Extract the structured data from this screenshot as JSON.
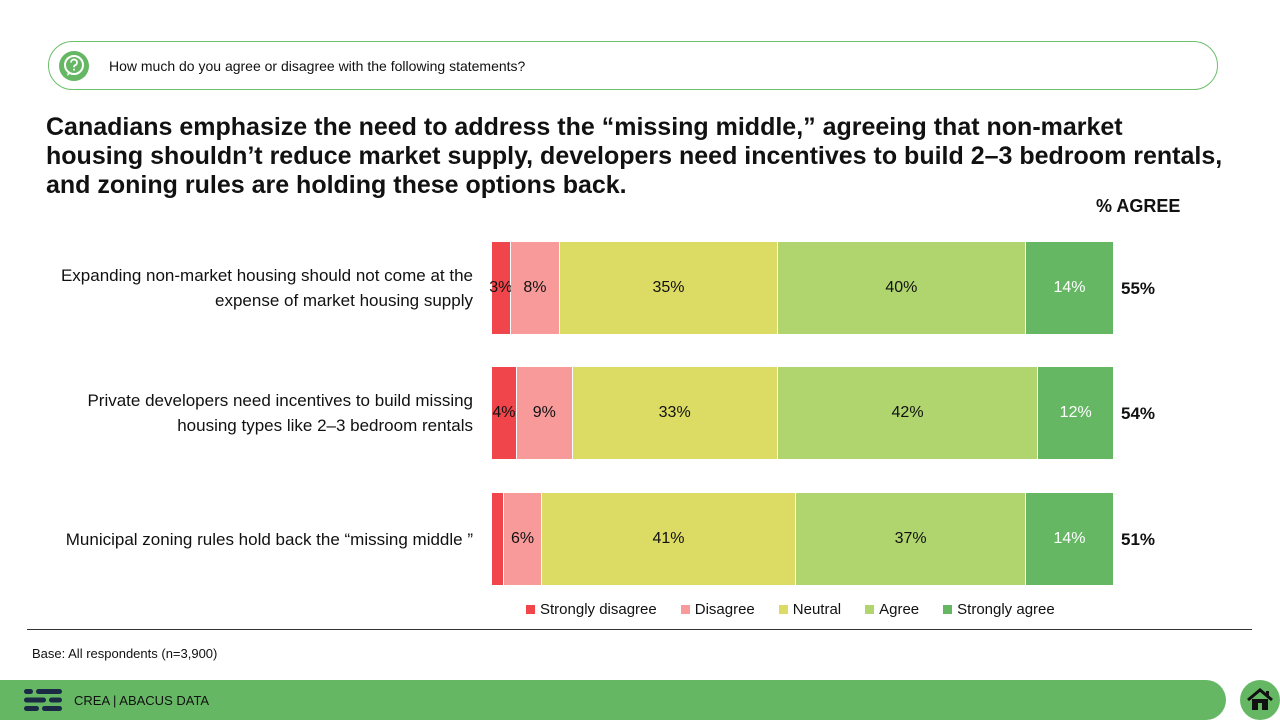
{
  "question": "How much do you agree or disagree with the following statements?",
  "headline": "Canadians emphasize the need to address the “missing middle,” agreeing that non-market housing shouldn’t reduce market supply, developers need incentives to build 2–3 bedroom rentals, and zoning rules are holding these options back.",
  "agree_header": "% AGREE",
  "colors": {
    "strongly_disagree": "#f0454b",
    "disagree": "#f99a9a",
    "neutral": "#dcdc64",
    "agree": "#b0d56e",
    "strongly_agree": "#66b764",
    "accent": "#66b764"
  },
  "chart_data": {
    "type": "bar",
    "orientation": "horizontal",
    "stacked": true,
    "title": "Canadians emphasize the need to address the “missing middle”",
    "categories": [
      "Expanding non-market housing should not come at the expense of market housing supply",
      "Private developers need incentives to build missing housing types like 2–3 bedroom rentals",
      "Municipal zoning rules hold back the “missing middle ”"
    ],
    "category_lines": [
      [
        "Expanding non-market housing should not come at the",
        "expense of market housing supply"
      ],
      [
        "Private developers need incentives to build missing",
        "housing types like 2–3 bedroom rentals"
      ],
      [
        "Municipal zoning rules hold back the “missing middle ”"
      ]
    ],
    "series": [
      {
        "name": "Strongly disagree",
        "values": [
          3,
          4,
          2
        ],
        "labels": [
          "3%",
          "4%",
          ""
        ]
      },
      {
        "name": "Disagree",
        "values": [
          8,
          9,
          6
        ],
        "labels": [
          "8%",
          "9%",
          "6%"
        ]
      },
      {
        "name": "Neutral",
        "values": [
          35,
          33,
          41
        ],
        "labels": [
          "35%",
          "33%",
          "41%"
        ]
      },
      {
        "name": "Agree",
        "values": [
          40,
          42,
          37
        ],
        "labels": [
          "40%",
          "42%",
          "37%"
        ]
      },
      {
        "name": "Strongly agree",
        "values": [
          14,
          12,
          14
        ],
        "labels": [
          "14%",
          "12%",
          "14%"
        ]
      }
    ],
    "agree_totals": [
      "55%",
      "54%",
      "51%"
    ],
    "legend_position": "bottom",
    "xlim": [
      0,
      100
    ]
  },
  "base_note": "Base: All respondents (n=3,900)",
  "footer": {
    "brand": "CREA  |  ABACUS DATA"
  }
}
